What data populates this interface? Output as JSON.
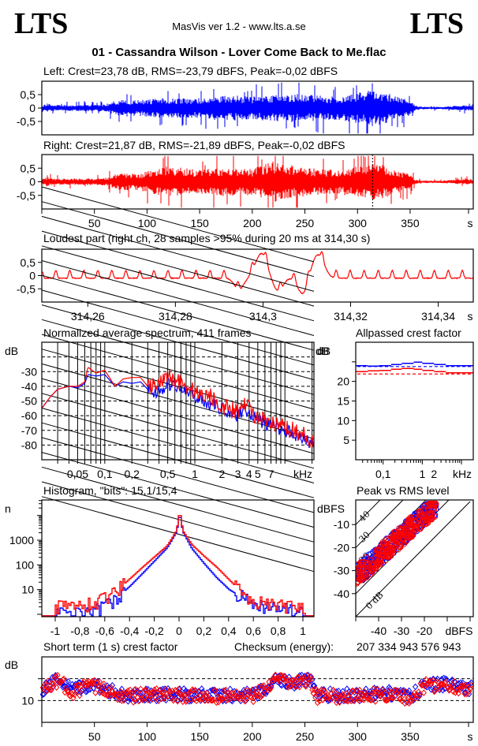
{
  "header": {
    "logo_left": "LTS",
    "logo_right": "LTS",
    "app_title": "MasVis ver 1.2 - www.lts.a.se",
    "file_name": "01 - Cassandra Wilson - Lover Come Back to Me.flac"
  },
  "colors": {
    "left": "#0000ff",
    "right": "#ff0000",
    "axes": "#000000",
    "background": "#ffffff"
  },
  "chart_data": [
    {
      "id": "left-waveform",
      "type": "area",
      "title": "Left: Crest=23,78 dB, RMS=-23,79 dBFS, Peak=-0,02 dBFS",
      "channel": "left",
      "crest_db": 23.78,
      "rms_dbfs": -23.79,
      "peak_dbfs": -0.02,
      "ylim": [
        -1,
        1
      ],
      "xlim": [
        0,
        410
      ],
      "yticks": [
        0.5,
        0,
        -0.5
      ],
      "ytick_labels": [
        "0,5",
        "0",
        "-0,5"
      ],
      "envelope_time_s": [
        0,
        5,
        10,
        30,
        60,
        75,
        90,
        120,
        150,
        170,
        200,
        220,
        240,
        260,
        280,
        300,
        315,
        330,
        340,
        350,
        355,
        360,
        380,
        400,
        410
      ],
      "envelope_amplitude": [
        0.1,
        0.18,
        0.12,
        0.12,
        0.14,
        0.35,
        0.3,
        0.4,
        0.38,
        0.5,
        0.45,
        0.5,
        0.55,
        0.5,
        0.45,
        0.6,
        0.7,
        0.55,
        0.4,
        0.3,
        0.1,
        0.05,
        0.05,
        0.1,
        0.1
      ]
    },
    {
      "id": "right-waveform",
      "type": "area",
      "title": "Right: Crest=21,87 dB, RMS=-21,89 dBFS, Peak=-0,02 dBFS",
      "channel": "right",
      "crest_db": 21.87,
      "rms_dbfs": -21.89,
      "peak_dbfs": -0.02,
      "ylim": [
        -1,
        1
      ],
      "xlim": [
        0,
        410
      ],
      "yticks": [
        0.5,
        0,
        -0.5
      ],
      "ytick_labels": [
        "0,5",
        "0",
        "-0,5"
      ],
      "xticks": [
        50,
        100,
        150,
        200,
        250,
        300,
        350
      ],
      "xtick_labels": [
        "50",
        "100",
        "150",
        "200",
        "250",
        "300",
        "350"
      ],
      "xlabel": "s",
      "marker_time_s": 314.3,
      "envelope_time_s": [
        0,
        5,
        10,
        30,
        60,
        75,
        90,
        120,
        150,
        170,
        200,
        220,
        230,
        240,
        260,
        280,
        300,
        315,
        330,
        340,
        350,
        355,
        360,
        380,
        400,
        410
      ],
      "envelope_amplitude": [
        0.1,
        0.18,
        0.12,
        0.12,
        0.14,
        0.35,
        0.3,
        0.6,
        0.45,
        0.55,
        0.5,
        0.8,
        0.7,
        0.6,
        0.5,
        0.45,
        0.6,
        0.75,
        0.55,
        0.4,
        0.3,
        0.08,
        0.05,
        0.05,
        0.1,
        0.1
      ]
    },
    {
      "id": "loudest-part",
      "type": "line",
      "title": "Loudest part (right ch, 28 samples >95% during 20 ms at 314,30 s)",
      "channel": "right",
      "samples_over_95pct": 28,
      "duration_ms": 20,
      "at_time_s": 314.3,
      "xlim": [
        314.2495,
        314.348
      ],
      "ylim": [
        -1,
        1
      ],
      "xticks": [
        314.26,
        314.28,
        314.3,
        314.32,
        314.34
      ],
      "xtick_labels": [
        "314,26",
        "314,28",
        "314,3",
        "314,32",
        "314,34"
      ],
      "xlabel": "s",
      "yticks": [
        0.5,
        0,
        -0.5
      ],
      "ytick_labels": [
        "0,5",
        "0",
        "-0,5"
      ],
      "oscillation_period_ms": 3.2,
      "events": [
        {
          "t": 314.2945,
          "v": -0.55
        },
        {
          "t": 314.2985,
          "v": 0.5
        },
        {
          "t": 314.3,
          "v": 0.98
        },
        {
          "t": 314.3035,
          "v": -0.62
        },
        {
          "t": 314.309,
          "v": -0.75
        },
        {
          "t": 314.312,
          "v": 0.85
        },
        {
          "t": 314.3135,
          "v": 0.6
        }
      ]
    },
    {
      "id": "spectrum",
      "type": "line",
      "title": "Normalized average spectrum, 411 frames",
      "frames": 411,
      "xscale": "log",
      "xlim_khz": [
        0.02,
        21
      ],
      "xticks": [
        0.05,
        0.1,
        0.2,
        0.5,
        1,
        2,
        3,
        4,
        5,
        7
      ],
      "xtick_labels": [
        "0,05",
        "0,1",
        "0,2",
        "0,5",
        "1",
        "2",
        "3",
        "4",
        "5",
        "7"
      ],
      "xlabel": "kHz",
      "ylabel": "dB",
      "ylim": [
        -90,
        -10
      ],
      "yticks": [
        -30,
        -40,
        -50,
        -60,
        -70,
        -80
      ],
      "ytick_labels": [
        "-30",
        "-40",
        "-50",
        "-60",
        "-70",
        "-80"
      ],
      "dashed_grid_db": [
        -20,
        -30,
        -40,
        -50,
        -60,
        -70,
        -80
      ],
      "series": [
        {
          "name": "left",
          "freq_khz": [
            0.02,
            0.025,
            0.03,
            0.04,
            0.05,
            0.06,
            0.065,
            0.08,
            0.1,
            0.13,
            0.16,
            0.2,
            0.25,
            0.3,
            0.4,
            0.5,
            0.7,
            1,
            1.5,
            2,
            3,
            3.5,
            5,
            7,
            10,
            15,
            21
          ],
          "db": [
            -55,
            -47,
            -42,
            -40,
            -41,
            -38,
            -32,
            -33,
            -32,
            -40,
            -37,
            -38,
            -37,
            -42,
            -45,
            -38,
            -42,
            -47,
            -52,
            -55,
            -60,
            -55,
            -63,
            -67,
            -70,
            -74,
            -80
          ]
        },
        {
          "name": "right",
          "freq_khz": [
            0.02,
            0.025,
            0.03,
            0.04,
            0.05,
            0.06,
            0.065,
            0.08,
            0.1,
            0.13,
            0.16,
            0.2,
            0.25,
            0.3,
            0.4,
            0.5,
            0.7,
            1,
            1.5,
            2,
            3,
            3.5,
            5,
            7,
            10,
            15,
            21
          ],
          "db": [
            -55,
            -47,
            -42,
            -40,
            -40,
            -37,
            -27,
            -31,
            -29,
            -40,
            -35,
            -34,
            -34,
            -40,
            -40,
            -33,
            -37,
            -44,
            -47,
            -53,
            -58,
            -50,
            -62,
            -66,
            -68,
            -72,
            -78
          ]
        }
      ]
    },
    {
      "id": "allpassed-crest",
      "type": "line",
      "title": "Allpassed crest factor",
      "xscale": "log",
      "xlim_khz": [
        0.02,
        20
      ],
      "xtick_labels": [
        "0,1",
        "1",
        "2",
        "kHz"
      ],
      "ylabel": "dB",
      "ylim": [
        0,
        30
      ],
      "yticks": [
        25,
        20,
        15,
        10,
        5
      ],
      "ytick_labels": [
        "",
        "20",
        "15",
        "10",
        "5"
      ],
      "series": [
        {
          "name": "left",
          "freq_khz": [
            0.02,
            0.04,
            0.08,
            0.16,
            0.3,
            0.6,
            1,
            2,
            4,
            20
          ],
          "db": [
            24.0,
            23.9,
            24.0,
            24.3,
            24.6,
            24.9,
            24.6,
            24.3,
            24.0,
            23.9
          ]
        },
        {
          "name": "left-full-band",
          "dashed": true,
          "db_const": 23.8
        },
        {
          "name": "right",
          "freq_khz": [
            0.02,
            0.04,
            0.08,
            0.16,
            0.3,
            0.6,
            1,
            2,
            4,
            20
          ],
          "db": [
            22.5,
            22.7,
            22.8,
            23.1,
            23.3,
            23.1,
            22.8,
            22.5,
            22.2,
            22.0
          ]
        },
        {
          "name": "right-full-band",
          "dashed": true,
          "db_const": 21.9
        }
      ]
    },
    {
      "id": "histogram",
      "type": "line",
      "title": "Histogram, \"bits\": 15,1/15,4",
      "bits_left": 15.1,
      "bits_right": 15.4,
      "xlim": [
        -1.1,
        1.1
      ],
      "ylabel": "n",
      "yscale": "log",
      "ylim": [
        0.8,
        40000
      ],
      "xticks": [
        -1,
        -0.8,
        -0.6,
        -0.4,
        -0.2,
        0,
        0.2,
        0.4,
        0.6,
        0.8,
        1
      ],
      "xtick_labels": [
        "-1",
        "-0,8",
        "-0,6",
        "-0,4",
        "-0,2",
        "0",
        "0,2",
        "0,4",
        "0,6",
        "0,8",
        "1"
      ],
      "yticks": [
        1000,
        100,
        10
      ],
      "ytick_labels": [
        "1000",
        "100",
        "10"
      ],
      "series": [
        {
          "name": "left",
          "x": [
            -1,
            -0.8,
            -0.6,
            -0.5,
            -0.4,
            -0.3,
            -0.2,
            -0.1,
            -0.03,
            -0.01,
            0,
            0.01,
            0.03,
            0.1,
            0.2,
            0.3,
            0.4,
            0.5,
            0.6,
            0.8,
            1
          ],
          "n": [
            1,
            1,
            2,
            5,
            14,
            45,
            150,
            500,
            2000,
            5000,
            20000,
            5000,
            2000,
            450,
            110,
            30,
            10,
            5,
            2,
            2,
            1
          ]
        },
        {
          "name": "right",
          "x": [
            -1,
            -0.8,
            -0.6,
            -0.5,
            -0.4,
            -0.3,
            -0.2,
            -0.1,
            -0.03,
            -0.01,
            0,
            0.01,
            0.03,
            0.1,
            0.2,
            0.3,
            0.4,
            0.5,
            0.6,
            0.8,
            1
          ],
          "n": [
            2,
            2,
            4,
            10,
            28,
            80,
            220,
            600,
            2200,
            6000,
            24000,
            6000,
            2200,
            650,
            220,
            80,
            25,
            8,
            3,
            2,
            2
          ]
        }
      ]
    },
    {
      "id": "peak-vs-rms",
      "type": "scatter",
      "title": "Peak vs RMS level",
      "xlabel": "dBFS",
      "ylabel": "dBFS",
      "xlim": [
        -50,
        0
      ],
      "ylim": [
        -50,
        0
      ],
      "xticks": [
        -40,
        -30,
        -20
      ],
      "xtick_labels": [
        "-40",
        "-30",
        "-20"
      ],
      "yticks": [
        -10,
        -20,
        -30,
        -40
      ],
      "ytick_labels": [
        "-10",
        "-20",
        "-30",
        "-40"
      ],
      "crest_lines_db": [
        0,
        10,
        20,
        30,
        40
      ],
      "crest_line_labels": [
        "0 dB",
        "10",
        "20",
        "30",
        "40"
      ],
      "cloud": {
        "rms_range": [
          -50,
          -15
        ],
        "crest_range_db": [
          13,
          22
        ]
      }
    },
    {
      "id": "short-term-crest",
      "type": "scatter",
      "title": "Short term (1 s) crest factor",
      "checksum_label": "Checksum (energy):",
      "checksum_value": "207 334 943 576 943",
      "ylabel": "dB",
      "ylim": [
        0,
        30
      ],
      "xlim": [
        0,
        410
      ],
      "yticks": [
        20,
        10
      ],
      "ytick_labels": [
        "",
        "10"
      ],
      "dashed_grid_db": [
        20,
        10
      ],
      "xticks": [
        50,
        100,
        150,
        200,
        250,
        300,
        350
      ],
      "xtick_labels": [
        "50",
        "100",
        "150",
        "200",
        "250",
        "300",
        "350"
      ],
      "xlabel": "s",
      "trend_time_s": [
        0,
        15,
        30,
        45,
        60,
        80,
        100,
        150,
        200,
        210,
        220,
        240,
        255,
        262,
        300,
        330,
        350,
        365,
        380,
        400,
        410
      ],
      "trend_db": [
        14,
        19,
        14,
        17,
        15,
        12,
        12.5,
        12,
        12,
        14,
        19,
        18,
        19,
        12,
        12,
        13,
        11,
        17,
        17,
        16,
        15
      ]
    }
  ]
}
